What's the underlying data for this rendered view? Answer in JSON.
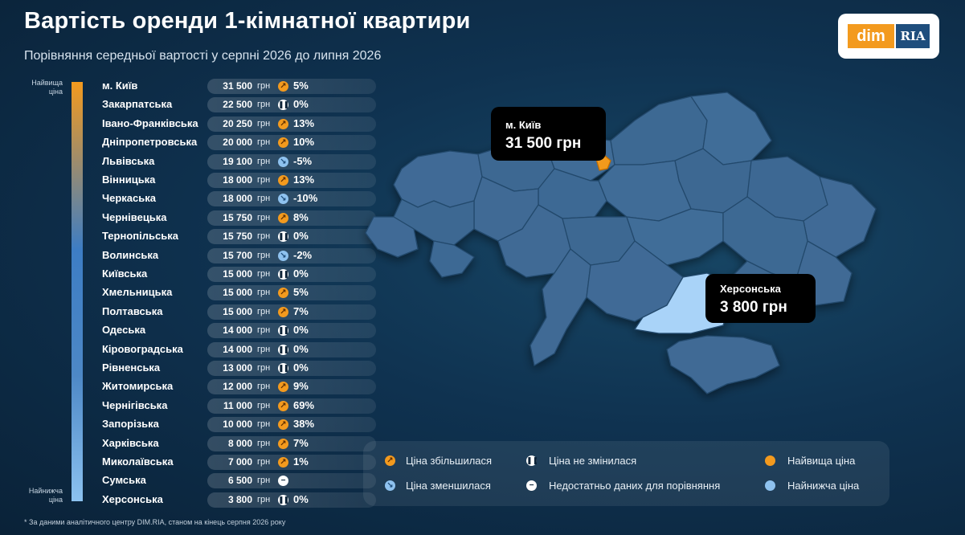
{
  "header": {
    "title": "Вартість оренди 1-кімнатної квартири",
    "subtitle": "Порівняння середньої вартості у серпні 2026 до липня 2026"
  },
  "logo": {
    "dim": "dim",
    "ria": "RIA"
  },
  "scale": {
    "top_label": "Найвища ціна",
    "bottom_label": "Найнижча ціна"
  },
  "currency": "грн",
  "regions": [
    {
      "name": "м. Київ",
      "price": "31 500",
      "trend": "up",
      "change": "5%"
    },
    {
      "name": "Закарпатська",
      "price": "22 500",
      "trend": "same",
      "change": "0%"
    },
    {
      "name": "Івано-Франківська",
      "price": "20 250",
      "trend": "up",
      "change": "13%"
    },
    {
      "name": "Дніпропетровська",
      "price": "20 000",
      "trend": "up",
      "change": "10%"
    },
    {
      "name": "Львівська",
      "price": "19 100",
      "trend": "down",
      "change": "-5%"
    },
    {
      "name": "Вінницька",
      "price": "18 000",
      "trend": "up",
      "change": "13%"
    },
    {
      "name": "Черкаська",
      "price": "18 000",
      "trend": "down",
      "change": "-10%"
    },
    {
      "name": "Чернівецька",
      "price": "15 750",
      "trend": "up",
      "change": "8%"
    },
    {
      "name": "Тернопільська",
      "price": "15 750",
      "trend": "same",
      "change": "0%"
    },
    {
      "name": "Волинська",
      "price": "15 700",
      "trend": "down",
      "change": "-2%"
    },
    {
      "name": "Київська",
      "price": "15 000",
      "trend": "same",
      "change": "0%"
    },
    {
      "name": "Хмельницька",
      "price": "15 000",
      "trend": "up",
      "change": "5%"
    },
    {
      "name": "Полтавська",
      "price": "15 000",
      "trend": "up",
      "change": "7%"
    },
    {
      "name": "Одеська",
      "price": "14 000",
      "trend": "same",
      "change": "0%"
    },
    {
      "name": "Кіровоградська",
      "price": "14 000",
      "trend": "same",
      "change": "0%"
    },
    {
      "name": "Рівненська",
      "price": "13 000",
      "trend": "same",
      "change": "0%"
    },
    {
      "name": "Житомирська",
      "price": "12 000",
      "trend": "up",
      "change": "9%"
    },
    {
      "name": "Чернігівська",
      "price": "11 000",
      "trend": "up",
      "change": "69%"
    },
    {
      "name": "Запорізька",
      "price": "10 000",
      "trend": "up",
      "change": "38%"
    },
    {
      "name": "Харківська",
      "price": "8 000",
      "trend": "up",
      "change": "7%"
    },
    {
      "name": "Миколаївська",
      "price": "7 000",
      "trend": "up",
      "change": "1%"
    },
    {
      "name": "Сумська",
      "price": "6 500",
      "trend": "na",
      "change": ""
    },
    {
      "name": "Херсонська",
      "price": "3 800",
      "trend": "same",
      "change": "0%"
    }
  ],
  "map": {
    "callout_top": {
      "name": "м. Київ",
      "price": "31 500 грн"
    },
    "callout_bottom": {
      "name": "Херсонська",
      "price": "3 800 грн"
    }
  },
  "legend": {
    "up": "Ціна збільшилася",
    "down": "Ціна зменшилася",
    "same": "Ціна не змінилася",
    "na": "Недостатньо даних для порівняння",
    "highest": "Найвища ціна",
    "lowest": "Найнижча ціна"
  },
  "icons": {
    "up": "arrow-up-right-icon",
    "down": "arrow-down-right-icon",
    "same": "pause-icon",
    "na": "minus-icon"
  },
  "colors": {
    "accent_orange": "#f39a1e",
    "accent_lightblue": "#8ec2ef",
    "background": "#0f3250",
    "map_fill": "#3e6a95"
  },
  "footnote": "* За даними аналітичного центру DIM.RIA, станом на кінець серпня 2026 року"
}
